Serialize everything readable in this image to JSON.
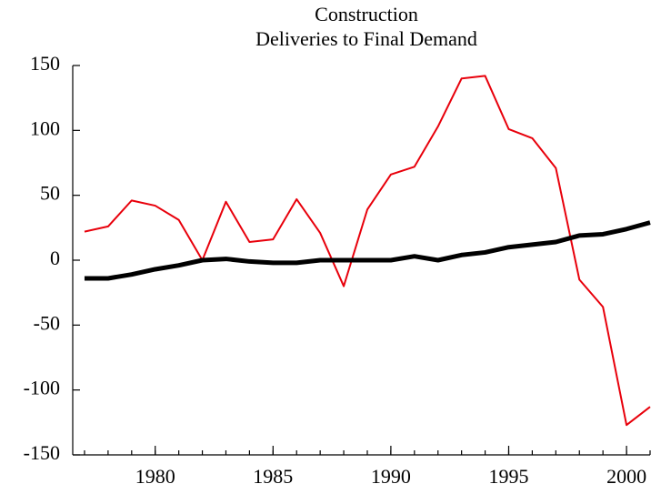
{
  "chart_data": {
    "type": "line",
    "title": "Construction",
    "subtitle": "Deliveries to Final Demand",
    "x": [
      1977,
      1978,
      1979,
      1980,
      1981,
      1982,
      1983,
      1984,
      1985,
      1986,
      1987,
      1988,
      1989,
      1990,
      1991,
      1992,
      1993,
      1994,
      1995,
      1996,
      1997,
      1998,
      1999,
      2000,
      2001
    ],
    "series": [
      {
        "color": "#e8000b",
        "values": [
          22,
          26,
          46,
          42,
          31,
          0,
          45,
          14,
          16,
          47,
          21,
          -20,
          39,
          66,
          72,
          103,
          140,
          142,
          101,
          94,
          71,
          -15,
          -36,
          -127,
          -113
        ]
      },
      {
        "color": "#000000",
        "values": [
          -14,
          -14,
          -11,
          -7,
          -4,
          0,
          1,
          -1,
          -2,
          -2,
          0,
          0,
          0,
          0,
          3,
          0,
          4,
          6,
          10,
          12,
          14,
          19,
          20,
          24,
          29
        ]
      }
    ],
    "xlim": [
      1976.5,
      2001
    ],
    "xticks": [
      1980,
      1985,
      1990,
      1995,
      2000
    ],
    "ylim": [
      -150,
      150
    ],
    "yticks": [
      -150,
      -100,
      -50,
      0,
      50,
      100,
      150
    ]
  }
}
